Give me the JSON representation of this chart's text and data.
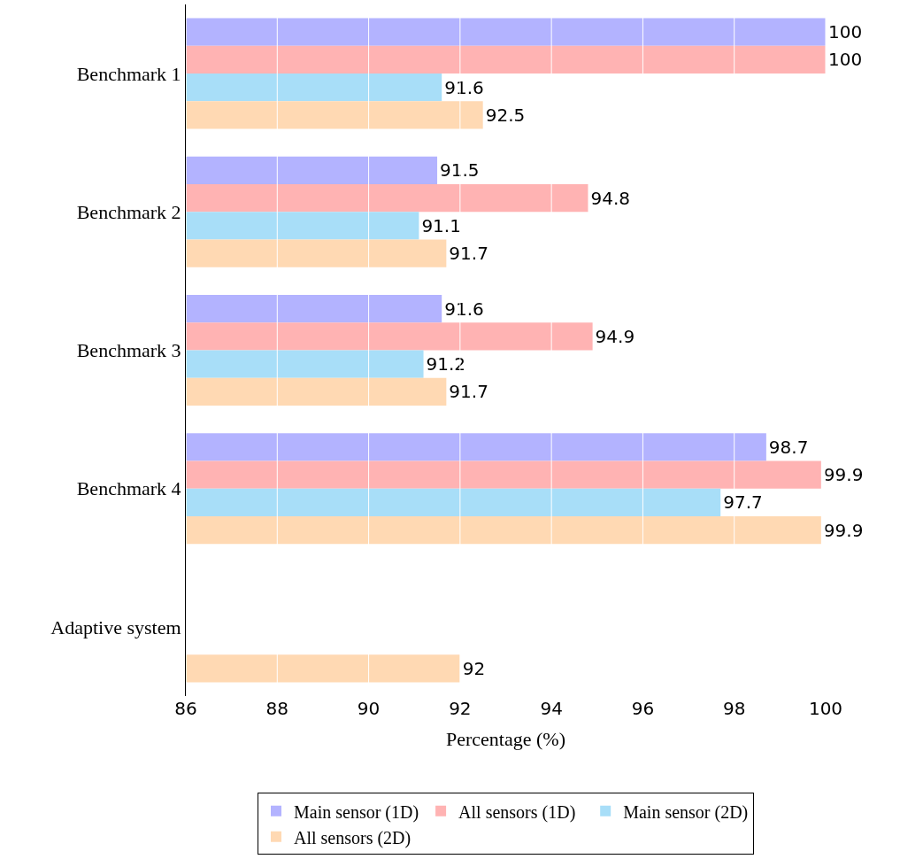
{
  "chart_data": {
    "type": "bar",
    "orientation": "horizontal",
    "xlabel": "Percentage (%)",
    "categories": [
      "Benchmark 1",
      "Benchmark 2",
      "Benchmark 3",
      "Benchmark 4",
      "Adaptive system"
    ],
    "series": [
      {
        "name": "Main sensor (1D)",
        "color": "#b3b3ff",
        "values": [
          100,
          91.5,
          91.6,
          98.7,
          null
        ]
      },
      {
        "name": "All sensors (1D)",
        "color": "#ffb3b3",
        "values": [
          100,
          94.8,
          94.9,
          99.9,
          null
        ]
      },
      {
        "name": "Main sensor (2D)",
        "color": "#a8def8",
        "values": [
          91.6,
          91.1,
          91.2,
          97.7,
          null
        ]
      },
      {
        "name": "All sensors (2D)",
        "color": "#ffd9b3",
        "values": [
          92.5,
          91.7,
          91.7,
          99.9,
          92
        ]
      }
    ],
    "xlim": [
      86,
      100
    ],
    "xticks": [
      86,
      88,
      90,
      92,
      94,
      96,
      98,
      100
    ],
    "grid": "x",
    "data_labels": true,
    "legend": "bottom"
  }
}
